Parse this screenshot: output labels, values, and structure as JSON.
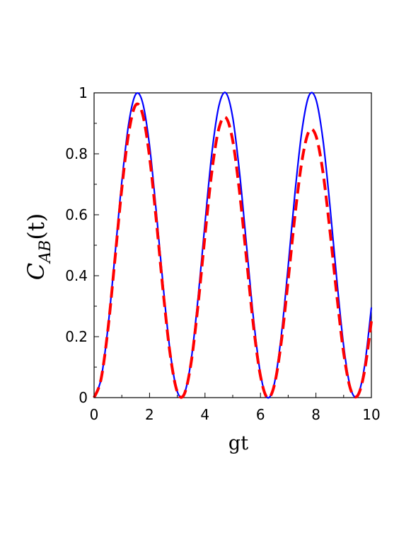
{
  "chart_data": {
    "type": "line",
    "xlabel": "gt",
    "ylabel": {
      "main": "C",
      "subscript": "AB",
      "argument": "(t)"
    },
    "xlim": [
      0,
      10
    ],
    "ylim": [
      0,
      1
    ],
    "x_ticks": [
      "0",
      "2",
      "4",
      "6",
      "8",
      "10"
    ],
    "y_ticks": [
      "0",
      "0.2",
      "0.4",
      "0.6",
      "0.8",
      "1"
    ],
    "x": [
      0,
      0.25,
      0.5,
      0.75,
      1,
      1.25,
      1.5,
      1.75,
      2,
      2.25,
      2.5,
      2.75,
      3,
      3.25,
      3.5,
      3.75,
      4,
      4.25,
      4.5,
      4.75,
      5,
      5.25,
      5.5,
      5.75,
      6,
      6.25,
      6.5,
      6.75,
      7,
      7.25,
      7.5,
      7.75,
      8,
      8.25,
      8.5,
      8.75,
      9,
      9.25,
      9.5,
      9.75,
      10
    ],
    "series": [
      {
        "color": "#0000ff",
        "style": "solid",
        "values": [
          0,
          0.061,
          0.23,
          0.465,
          0.708,
          0.9,
          0.995,
          0.968,
          0.827,
          0.603,
          0.358,
          0.146,
          0.02,
          0.012,
          0.123,
          0.327,
          0.573,
          0.804,
          0.957,
          1.0,
          0.919,
          0.735,
          0.497,
          0.258,
          0.078,
          0.0,
          0.046,
          0.203,
          0.432,
          0.677,
          0.879,
          0.991,
          0.979,
          0.849,
          0.635,
          0.39,
          0.17,
          0.031,
          0.007,
          0.101,
          0.296
        ]
      },
      {
        "color": "#ff0000",
        "style": "dashed",
        "values": [
          0,
          0.06,
          0.224,
          0.452,
          0.686,
          0.869,
          0.96,
          0.93,
          0.79,
          0.576,
          0.34,
          0.138,
          0.019,
          0.011,
          0.115,
          0.305,
          0.532,
          0.744,
          0.883,
          0.919,
          0.843,
          0.671,
          0.452,
          0.234,
          0.071,
          0.0,
          0.041,
          0.182,
          0.386,
          0.602,
          0.779,
          0.874,
          0.859,
          0.742,
          0.552,
          0.338,
          0.147,
          0.027,
          0.006,
          0.086,
          0.251
        ]
      }
    ],
    "grid": false,
    "legend": "none"
  }
}
